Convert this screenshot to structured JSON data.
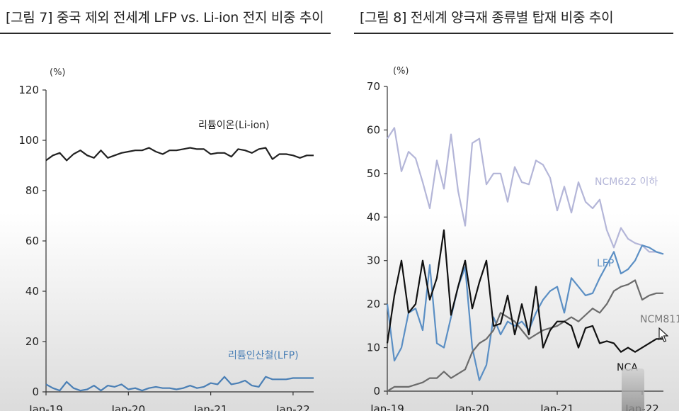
{
  "chart_data": [
    {
      "type": "line",
      "title": "[그림 7] 중국 제외 전세계 LFP vs. Li-ion 전지 비중 추이",
      "ylabel": "(%)",
      "xlabel": "",
      "ylim": [
        0,
        120
      ],
      "yticks": [
        0,
        20,
        40,
        60,
        80,
        100,
        120
      ],
      "xlim": [
        0,
        39
      ],
      "xticks": [
        {
          "label": "Jan-19",
          "index": 0
        },
        {
          "label": "Jan-20",
          "index": 12
        },
        {
          "label": "Jan-21",
          "index": 24
        },
        {
          "label": "Jan-22",
          "index": 36
        }
      ],
      "grid": false,
      "series": [
        {
          "name": "리튬이온(Li-ion)",
          "color": "#222222",
          "values": [
            92,
            94,
            95,
            92,
            94.5,
            96,
            94,
            93,
            96,
            93,
            94,
            95,
            95.5,
            96,
            96,
            97,
            95.5,
            94.5,
            96,
            96,
            96.5,
            97,
            96.5,
            96.5,
            94.5,
            95,
            95,
            93.5,
            96.5,
            96,
            95,
            96.5,
            97,
            92.5,
            94.5,
            94.5,
            94,
            93,
            94,
            94
          ]
        },
        {
          "name": "리튬인산철(LFP)",
          "color": "#4a7fb5",
          "values": [
            3,
            1.5,
            0.5,
            4,
            1.5,
            0.5,
            1,
            2.5,
            0.5,
            2.5,
            2,
            3,
            1,
            1.5,
            0.5,
            1.5,
            2,
            1.5,
            1.5,
            1,
            1.5,
            2.5,
            1.5,
            2,
            3.5,
            3,
            6,
            3,
            3.5,
            4.5,
            2.5,
            2,
            6,
            5,
            5,
            5,
            5.5,
            5.5,
            5.5,
            5.5
          ]
        }
      ]
    },
    {
      "type": "line",
      "title": "[그림 8] 전세계 양극재 종류별 탑재 비중 추이",
      "ylabel": "(%)",
      "xlabel": "",
      "ylim": [
        0,
        70
      ],
      "yticks": [
        0,
        10,
        20,
        30,
        40,
        50,
        60,
        70
      ],
      "xlim": [
        0,
        39
      ],
      "xticks": [
        {
          "label": "Jan-19",
          "index": 0
        },
        {
          "label": "Jan-20",
          "index": 12
        },
        {
          "label": "Jan-21",
          "index": 24
        },
        {
          "label": "Jan-22",
          "index": 36
        }
      ],
      "grid": false,
      "series": [
        {
          "name": "NCM622 이하",
          "color": "#b4b6d8",
          "values": [
            58,
            60.5,
            50.5,
            55,
            53.5,
            48,
            42,
            53,
            46.5,
            59,
            46,
            38,
            57,
            58,
            47.5,
            50,
            50,
            43.5,
            51.5,
            48,
            47.5,
            53,
            52,
            49,
            41.5,
            47,
            41,
            48,
            43.5,
            42,
            44,
            37,
            33,
            37.5,
            35,
            34,
            33.5,
            32,
            32,
            31.5
          ]
        },
        {
          "name": "LFP",
          "color": "#5b8fc4",
          "values": [
            20,
            7,
            10,
            18,
            19,
            14,
            29,
            11,
            10,
            17,
            24,
            28.5,
            10,
            2.5,
            6,
            17,
            13,
            16,
            15,
            16,
            14,
            18,
            21,
            23,
            24,
            18,
            26,
            24,
            22,
            22.5,
            26,
            29,
            32,
            27,
            28,
            30,
            33.5,
            33,
            32,
            31.5
          ]
        },
        {
          "name": "NCM811",
          "color": "#6b6b6b",
          "values": [
            0,
            1,
            1,
            1,
            1.5,
            2,
            3,
            3,
            4.5,
            3,
            4,
            5,
            9,
            11,
            12,
            14,
            18,
            17,
            16,
            14,
            12,
            13,
            14,
            14.5,
            15,
            16,
            17,
            16,
            17.5,
            19,
            18,
            20,
            23,
            24,
            24.5,
            25.5,
            21,
            22,
            22.5,
            22.5
          ]
        },
        {
          "name": "NCA",
          "color": "#111111",
          "values": [
            11,
            22,
            30,
            18,
            20,
            30,
            21,
            26,
            37,
            17.5,
            24,
            30,
            19,
            25,
            30,
            15,
            15.5,
            22,
            13,
            20,
            13,
            24,
            10,
            14,
            16,
            16,
            15,
            10,
            14.5,
            15,
            11,
            11.5,
            11,
            9,
            10,
            9,
            10,
            11,
            12,
            12
          ]
        }
      ]
    }
  ]
}
